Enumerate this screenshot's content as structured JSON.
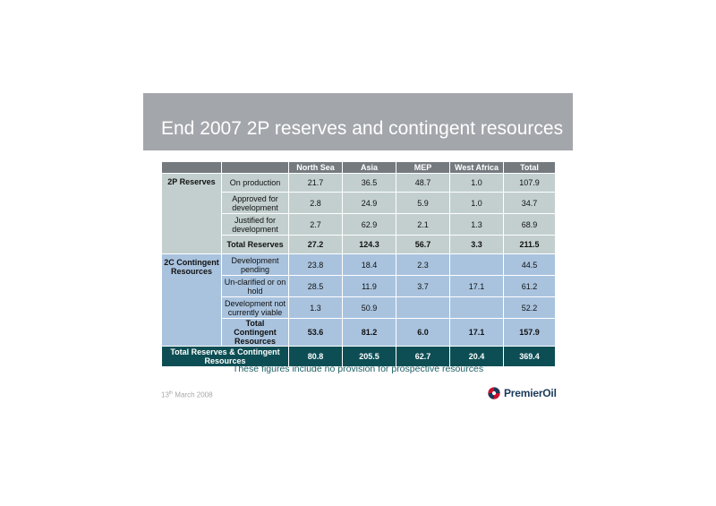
{
  "title": "End 2007 2P reserves and contingent resources",
  "columns": [
    "North Sea",
    "Asia",
    "MEP",
    "West Africa",
    "Total"
  ],
  "groups": [
    {
      "label": "2P Reserves",
      "rows": [
        {
          "label": "On production",
          "values": [
            "21.7",
            "36.5",
            "48.7",
            "1.0",
            "107.9"
          ]
        },
        {
          "label": "Approved for development",
          "values": [
            "2.8",
            "24.9",
            "5.9",
            "1.0",
            "34.7"
          ]
        },
        {
          "label": "Justified for development",
          "values": [
            "2.7",
            "62.9",
            "2.1",
            "1.3",
            "68.9"
          ]
        }
      ],
      "total": {
        "label": "Total Reserves",
        "values": [
          "27.2",
          "124.3",
          "56.7",
          "3.3",
          "211.5"
        ]
      }
    },
    {
      "label": "2C Contingent Resources",
      "rows": [
        {
          "label": "Development pending",
          "values": [
            "23.8",
            "18.4",
            "2.3",
            "",
            "44.5"
          ]
        },
        {
          "label": "Un-clarified or on hold",
          "values": [
            "28.5",
            "11.9",
            "3.7",
            "17.1",
            "61.2"
          ]
        },
        {
          "label": "Development not currently viable",
          "values": [
            "1.3",
            "50.9",
            "",
            "",
            "52.2"
          ]
        }
      ],
      "total": {
        "label": "Total Contingent Resources",
        "values": [
          "53.6",
          "81.2",
          "6.0",
          "17.1",
          "157.9"
        ]
      }
    }
  ],
  "grand_total": {
    "label": "Total Reserves & Contingent Resources",
    "values": [
      "80.8",
      "205.5",
      "62.7",
      "20.4",
      "369.4"
    ]
  },
  "note": "These figures include no provision for prospective resources",
  "footer": {
    "date_day": "13",
    "date_suffix": "th",
    "date_rest": " March 2008"
  },
  "logo": {
    "text": "PremierOil",
    "icon": "premier-oil-logo-icon",
    "colors": {
      "red": "#c8102e",
      "blue": "#1b3a5a"
    }
  }
}
